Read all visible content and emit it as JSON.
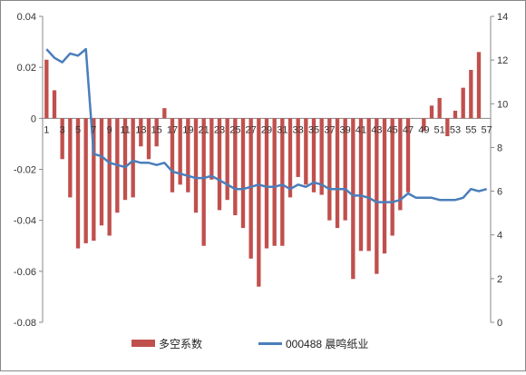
{
  "chart_data": {
    "type": "bar+line",
    "categories": [
      1,
      2,
      3,
      4,
      5,
      6,
      7,
      8,
      9,
      10,
      11,
      12,
      13,
      14,
      15,
      16,
      17,
      18,
      19,
      20,
      21,
      22,
      23,
      24,
      25,
      26,
      27,
      28,
      29,
      30,
      31,
      32,
      33,
      34,
      35,
      36,
      37,
      38,
      39,
      40,
      41,
      42,
      43,
      44,
      45,
      46,
      47,
      48,
      49,
      50,
      51,
      52,
      53,
      54,
      55,
      56,
      57
    ],
    "x_tick_labels": [
      "1",
      "3",
      "5",
      "7",
      "9",
      "11",
      "13",
      "15",
      "17",
      "19",
      "21",
      "23",
      "25",
      "27",
      "29",
      "31",
      "33",
      "35",
      "37",
      "39",
      "41",
      "43",
      "45",
      "47",
      "49",
      "51",
      "53",
      "55",
      "57"
    ],
    "left_axis": {
      "ylim": [
        -0.08,
        0.04
      ],
      "ticks": [
        "0.04",
        "0.02",
        "0",
        "-0.02",
        "-0.04",
        "-0.06",
        "-0.08"
      ]
    },
    "right_axis": {
      "ylim": [
        0,
        14
      ],
      "ticks": [
        "14",
        "12",
        "10",
        "8",
        "6",
        "4",
        "2",
        "0"
      ]
    },
    "series": [
      {
        "name": "多空系数",
        "type": "bar",
        "axis": "left",
        "color": "#C0504D",
        "values": [
          0.023,
          0.011,
          -0.016,
          -0.031,
          -0.051,
          -0.049,
          -0.048,
          -0.042,
          -0.046,
          -0.037,
          -0.032,
          -0.031,
          -0.011,
          -0.016,
          -0.011,
          0.004,
          -0.029,
          -0.026,
          -0.029,
          -0.037,
          -0.05,
          -0.024,
          -0.036,
          -0.032,
          -0.038,
          -0.043,
          -0.055,
          -0.066,
          -0.051,
          -0.05,
          -0.05,
          -0.031,
          -0.023,
          -0.026,
          -0.029,
          -0.03,
          -0.04,
          -0.043,
          -0.04,
          -0.063,
          -0.052,
          -0.052,
          -0.061,
          -0.053,
          -0.046,
          -0.036,
          -0.029,
          0.0,
          -0.005,
          0.005,
          0.008,
          -0.007,
          0.003,
          0.012,
          0.019,
          0.026,
          0.0
        ]
      },
      {
        "name": "000488 晨鸣纸业",
        "type": "line",
        "axis": "right",
        "color": "#4A7EBB",
        "values": [
          12.5,
          12.1,
          11.9,
          12.3,
          12.2,
          12.5,
          7.7,
          7.6,
          7.3,
          7.2,
          7.1,
          7.4,
          7.3,
          7.3,
          7.2,
          7.3,
          6.9,
          6.8,
          6.7,
          6.6,
          6.6,
          6.7,
          6.5,
          6.3,
          6.1,
          6.1,
          6.2,
          6.3,
          6.2,
          6.2,
          6.3,
          6.1,
          6.3,
          6.2,
          6.4,
          6.3,
          6.1,
          6.1,
          6.1,
          5.8,
          5.8,
          5.7,
          5.5,
          5.5,
          5.5,
          5.6,
          5.9,
          5.7,
          5.7,
          5.7,
          5.6,
          5.6,
          5.6,
          5.7,
          6.1,
          6.0,
          6.1
        ]
      }
    ],
    "legend": {
      "placement": "bottom"
    },
    "grid": false
  }
}
